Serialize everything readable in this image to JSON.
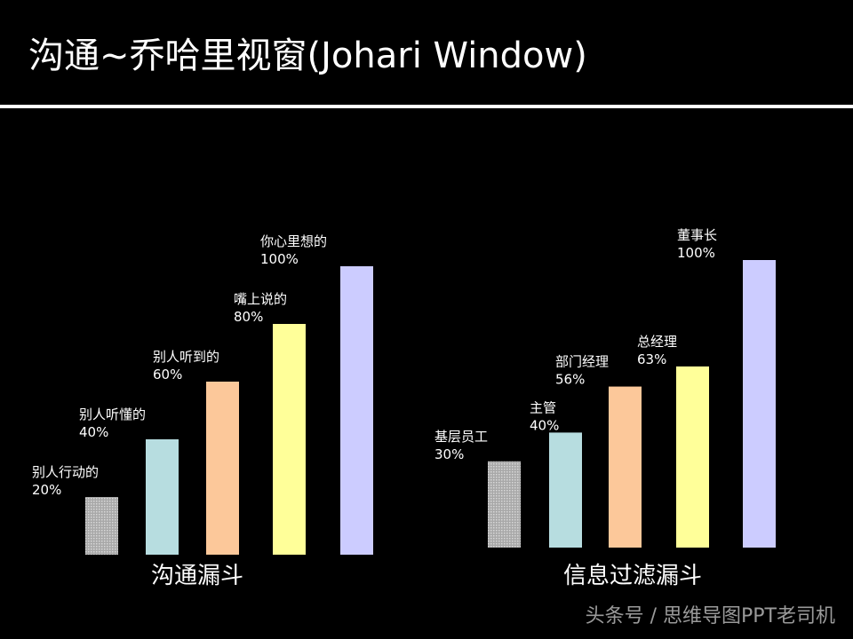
{
  "page": {
    "title": "沟通~乔哈里视窗(Johari Window)",
    "watermark": "头条号 / 思维导图PPT老司机"
  },
  "chart_data": [
    {
      "type": "bar",
      "title": "沟通漏斗",
      "categories": [
        "别人行动的",
        "别人听懂的",
        "别人听到的",
        "嘴上说的",
        "你心里想的"
      ],
      "values": [
        20,
        40,
        60,
        80,
        100
      ],
      "value_labels": [
        "20%",
        "40%",
        "60%",
        "80%",
        "100%"
      ],
      "colors": [
        "#c8c8c8",
        "#b7dde0",
        "#fcc89a",
        "#ffff99",
        "#ccccff"
      ],
      "ylim": [
        0,
        100
      ],
      "grid": false
    },
    {
      "type": "bar",
      "title": "信息过滤漏斗",
      "categories": [
        "基层员工",
        "主管",
        "部门经理",
        "总经理",
        "董事长"
      ],
      "values": [
        30,
        40,
        56,
        63,
        100
      ],
      "value_labels": [
        "30%",
        "40%",
        "56%",
        "63%",
        "100%"
      ],
      "colors": [
        "#c8c8c8",
        "#b7dde0",
        "#fcc89a",
        "#ffff99",
        "#ccccff"
      ],
      "ylim": [
        0,
        100
      ],
      "grid": false
    }
  ]
}
